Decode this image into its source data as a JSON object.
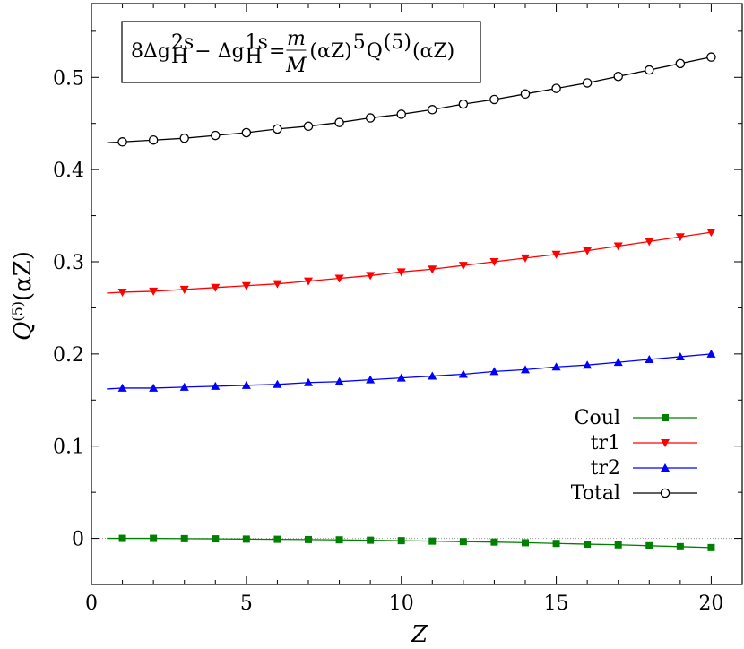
{
  "chart_data": {
    "type": "line",
    "xlabel": "Z",
    "ylabel": "Q(5)(αZ)",
    "xlim": [
      0,
      21
    ],
    "ylim": [
      -0.05,
      0.58
    ],
    "x_ticks": [
      0,
      5,
      10,
      15,
      20
    ],
    "x_tick_labels": [
      "0",
      "5",
      "10",
      "15",
      "20"
    ],
    "y_ticks": [
      0,
      0.1,
      0.2,
      0.3,
      0.4,
      0.5
    ],
    "y_tick_labels": [
      "0",
      "0.1",
      "0.2",
      "0.3",
      "0.4",
      "0.5"
    ],
    "grid": false,
    "zero_line": true,
    "legend_position": "right",
    "annotation": {
      "parts": [
        {
          "text": "8Δg",
          "role": "normal"
        },
        {
          "text": "H",
          "role": "sub"
        },
        {
          "text": "2s",
          "role": "sup"
        },
        {
          "text": " − Δg",
          "role": "normal"
        },
        {
          "text": "H",
          "role": "sub"
        },
        {
          "text": "1s",
          "role": "sup"
        },
        {
          "text": " = ",
          "role": "normal"
        },
        {
          "text": "m",
          "role": "num"
        },
        {
          "text": "M",
          "role": "den"
        },
        {
          "text": "(αZ)",
          "role": "normal"
        },
        {
          "text": "5",
          "role": "sup"
        },
        {
          "text": "Q",
          "role": "normal"
        },
        {
          "text": "(5)",
          "role": "sup"
        },
        {
          "text": "(αZ)",
          "role": "normal"
        }
      ]
    },
    "x": [
      1,
      2,
      3,
      4,
      5,
      6,
      7,
      8,
      9,
      10,
      11,
      12,
      13,
      14,
      15,
      16,
      17,
      18,
      19,
      20
    ],
    "series": [
      {
        "name": "Coul",
        "color": "#008000",
        "marker": "square",
        "curve_start": [
          0.5,
          0.0
        ],
        "values": [
          0.0,
          0.0,
          -0.0003,
          -0.0005,
          -0.0008,
          -0.001,
          -0.0013,
          -0.0016,
          -0.002,
          -0.0025,
          -0.003,
          -0.0035,
          -0.004,
          -0.0047,
          -0.0055,
          -0.0063,
          -0.007,
          -0.008,
          -0.009,
          -0.01
        ]
      },
      {
        "name": "tr1",
        "color": "#ff0000",
        "marker": "triangle-down",
        "curve_start": [
          0.5,
          0.266
        ],
        "values": [
          0.267,
          0.268,
          0.27,
          0.272,
          0.274,
          0.276,
          0.279,
          0.282,
          0.285,
          0.289,
          0.292,
          0.296,
          0.3,
          0.304,
          0.308,
          0.312,
          0.317,
          0.322,
          0.327,
          0.332
        ]
      },
      {
        "name": "tr2",
        "color": "#0000ff",
        "marker": "triangle-up",
        "curve_start": [
          0.5,
          0.162
        ],
        "values": [
          0.163,
          0.163,
          0.164,
          0.165,
          0.166,
          0.167,
          0.169,
          0.17,
          0.172,
          0.174,
          0.176,
          0.178,
          0.181,
          0.183,
          0.186,
          0.188,
          0.191,
          0.194,
          0.197,
          0.2
        ]
      },
      {
        "name": "Total",
        "color": "#000000",
        "marker": "circle",
        "curve_start": [
          0.5,
          0.429
        ],
        "values": [
          0.43,
          0.432,
          0.434,
          0.437,
          0.44,
          0.444,
          0.447,
          0.451,
          0.456,
          0.46,
          0.465,
          0.471,
          0.476,
          0.482,
          0.488,
          0.494,
          0.501,
          0.508,
          0.515,
          0.522
        ]
      }
    ]
  }
}
